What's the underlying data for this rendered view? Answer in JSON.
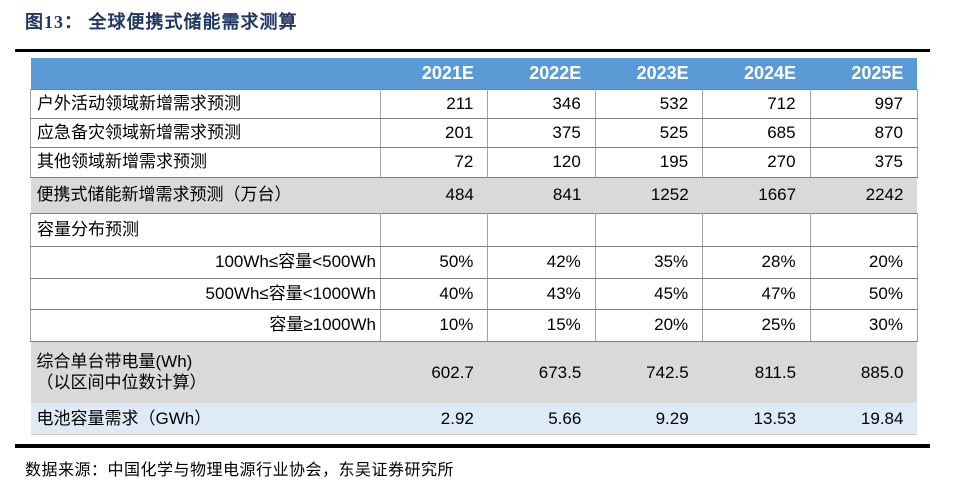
{
  "figure": {
    "title": "图13：  全球便携式储能需求测算",
    "source": "数据来源：中国化学与物理电源行业协会，东吴证券研究所"
  },
  "colors": {
    "header_bg": "#5B9BD5",
    "header_text": "#FFFFFF",
    "gray_row_bg": "#D9D9D9",
    "highlight_row_bg": "#DEEBF7",
    "title_text": "#1F3864",
    "rule_color": "#000000"
  },
  "table": {
    "header": [
      "",
      "2021E",
      "2022E",
      "2023E",
      "2024E",
      "2025E"
    ],
    "rows": [
      {
        "label": "户外活动领域新增需求预测",
        "align": "left",
        "variant": "plain",
        "values": [
          "211",
          "346",
          "532",
          "712",
          "997"
        ]
      },
      {
        "label": "应急备灾领域新增需求预测",
        "align": "left",
        "variant": "plain",
        "values": [
          "201",
          "375",
          "525",
          "685",
          "870"
        ]
      },
      {
        "label": "其他领域新增需求预测",
        "align": "left",
        "variant": "plain",
        "values": [
          "72",
          "120",
          "195",
          "270",
          "375"
        ]
      },
      {
        "label": "便携式储能新增需求预测（万台）",
        "align": "left",
        "variant": "gray",
        "values": [
          "484",
          "841",
          "1252",
          "1667",
          "2242"
        ]
      },
      {
        "label": "容量分布预测",
        "align": "left",
        "variant": "plain",
        "values": [
          "",
          "",
          "",
          "",
          ""
        ]
      },
      {
        "label": "100Wh≤容量<500Wh",
        "align": "right",
        "variant": "plain",
        "values": [
          "50%",
          "42%",
          "35%",
          "28%",
          "20%"
        ]
      },
      {
        "label": "500Wh≤容量<1000Wh",
        "align": "right",
        "variant": "plain",
        "values": [
          "40%",
          "43%",
          "45%",
          "47%",
          "50%"
        ]
      },
      {
        "label": "容量≥1000Wh",
        "align": "right",
        "variant": "plain",
        "values": [
          "10%",
          "15%",
          "20%",
          "25%",
          "30%"
        ]
      },
      {
        "label": "综合单台带电量(Wh)\n（以区间中位数计算）",
        "align": "left",
        "variant": "gray",
        "values": [
          "602.7",
          "673.5",
          "742.5",
          "811.5",
          "885.0"
        ]
      },
      {
        "label": "电池容量需求（GWh）",
        "align": "left",
        "variant": "highlight",
        "values": [
          "2.92",
          "5.66",
          "9.29",
          "13.53",
          "19.84"
        ]
      }
    ]
  }
}
